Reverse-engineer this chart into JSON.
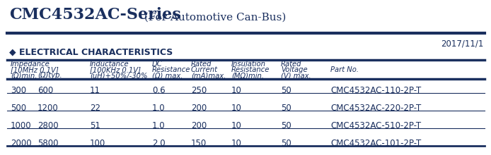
{
  "title_bold": "CMC4532AC-Series",
  "title_regular": " (For Automotive Can-Bus)",
  "date": "2017/11/1",
  "section_label": "◆ ELECTRICAL CHARACTERISTICS",
  "header_row1": [
    "Impedance",
    "",
    "Inductance",
    "DC",
    "Rated",
    "Insulation",
    "Rated",
    ""
  ],
  "header_row2": [
    "[10MHz 0.1V]",
    "",
    "[100KHz 0.1V]",
    "Resistance",
    "Current",
    "Resistance",
    "Voltage",
    "Part No."
  ],
  "header_row3": [
    "(Ω)min.",
    "(Ω)typ.",
    "(uH)+50%/-30%",
    "(Ω) max.",
    "(mA)max.",
    "(MΩ)min.",
    "(V) max.",
    ""
  ],
  "rows": [
    [
      "300",
      "600",
      "11",
      "0.6",
      "250",
      "10",
      "50",
      "CMC4532AC-110-2P-T"
    ],
    [
      "500",
      "1200",
      "22",
      "1.0",
      "200",
      "10",
      "50",
      "CMC4532AC-220-2P-T"
    ],
    [
      "1000",
      "2800",
      "51",
      "1.0",
      "200",
      "10",
      "50",
      "CMC4532AC-510-2P-T"
    ],
    [
      "2000",
      "5800",
      "100",
      "2.0",
      "150",
      "10",
      "50",
      "CMC4532AC-101-2P-T"
    ]
  ],
  "navy": "#1a2f5e",
  "bg_color": "#ffffff"
}
